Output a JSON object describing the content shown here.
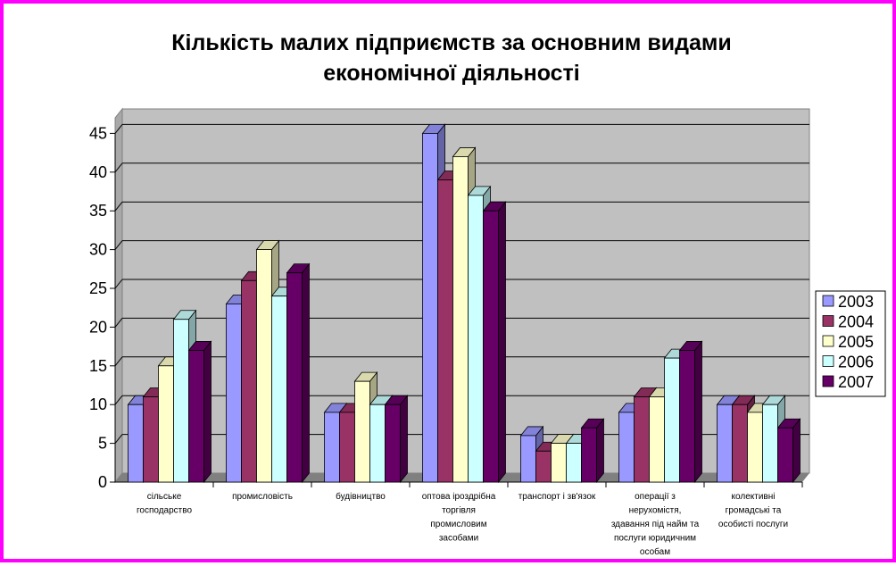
{
  "chart_data": {
    "type": "bar",
    "title_lines": [
      "Кількість малих підприємств за основним видами",
      "економічної діяльності"
    ],
    "categories": [
      [
        "сільське",
        "господарство"
      ],
      [
        "промисловість"
      ],
      [
        "будівництво"
      ],
      [
        "оптова іроздрібна",
        "торгівля",
        "промисловим",
        "засобами"
      ],
      [
        "транспорт і зв'язок"
      ],
      [
        "операції з",
        "нерухомістя,",
        "здавання під найм та",
        "послуги юридичним",
        "особам"
      ],
      [
        "колективні",
        "громадські та",
        "особисті послуги"
      ]
    ],
    "series": [
      {
        "name": "2003",
        "color": "#9999ff",
        "values": [
          10,
          23,
          9,
          45,
          6,
          9,
          10
        ]
      },
      {
        "name": "2004",
        "color": "#993366",
        "values": [
          11,
          26,
          9,
          39,
          4,
          11,
          10
        ]
      },
      {
        "name": "2005",
        "color": "#ffffcc",
        "values": [
          15,
          30,
          13,
          42,
          5,
          11,
          9
        ]
      },
      {
        "name": "2006",
        "color": "#ccffff",
        "values": [
          21,
          24,
          10,
          37,
          5,
          16,
          10
        ]
      },
      {
        "name": "2007",
        "color": "#660066",
        "values": [
          17,
          27,
          10,
          35,
          7,
          17,
          7
        ]
      }
    ],
    "ylim": [
      0,
      45
    ],
    "yticks": [
      "0",
      "5",
      "10",
      "15",
      "20",
      "25",
      "30",
      "35",
      "40",
      "45"
    ],
    "grid": true,
    "legend_position": "right",
    "plot_background": "#c0c0c0",
    "floor_color": "#808080",
    "border_color": "#ff00ff"
  }
}
